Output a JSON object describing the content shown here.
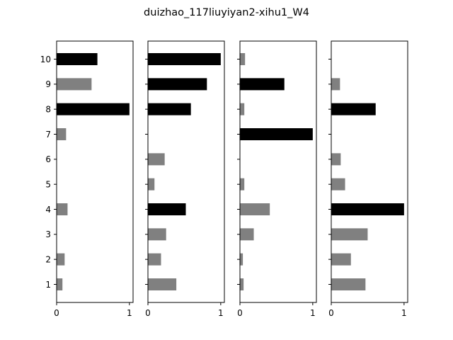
{
  "chart_data": {
    "type": "bar",
    "orientation": "horizontal",
    "title": "duizhao_117liuyiyan2-xihu1_W4",
    "xlabel": "",
    "ylabel": "",
    "categories": [
      "1",
      "2",
      "3",
      "4",
      "5",
      "6",
      "7",
      "8",
      "9",
      "10"
    ],
    "xlim": [
      0,
      1.05
    ],
    "xticks": [
      "0",
      "1"
    ],
    "grid": false,
    "colors": {
      "highlight": "#000000",
      "normal": "#808080"
    },
    "panels": [
      {
        "values": [
          0.08,
          0.11,
          0.0,
          0.15,
          0.0,
          0.0,
          0.13,
          1.0,
          0.48,
          0.56
        ],
        "highlight": [
          false,
          false,
          false,
          false,
          false,
          false,
          false,
          true,
          false,
          true
        ]
      },
      {
        "values": [
          0.39,
          0.18,
          0.25,
          0.52,
          0.09,
          0.23,
          0.0,
          0.59,
          0.81,
          1.0
        ],
        "highlight": [
          false,
          false,
          false,
          true,
          false,
          false,
          false,
          true,
          true,
          true
        ]
      },
      {
        "values": [
          0.05,
          0.04,
          0.19,
          0.41,
          0.06,
          0.0,
          1.0,
          0.06,
          0.61,
          0.07
        ],
        "highlight": [
          false,
          false,
          false,
          false,
          false,
          false,
          true,
          false,
          true,
          false
        ]
      },
      {
        "values": [
          0.47,
          0.27,
          0.5,
          1.0,
          0.19,
          0.13,
          0.0,
          0.61,
          0.12,
          0.0
        ],
        "highlight": [
          false,
          false,
          false,
          true,
          false,
          false,
          false,
          true,
          false,
          false
        ]
      }
    ]
  }
}
